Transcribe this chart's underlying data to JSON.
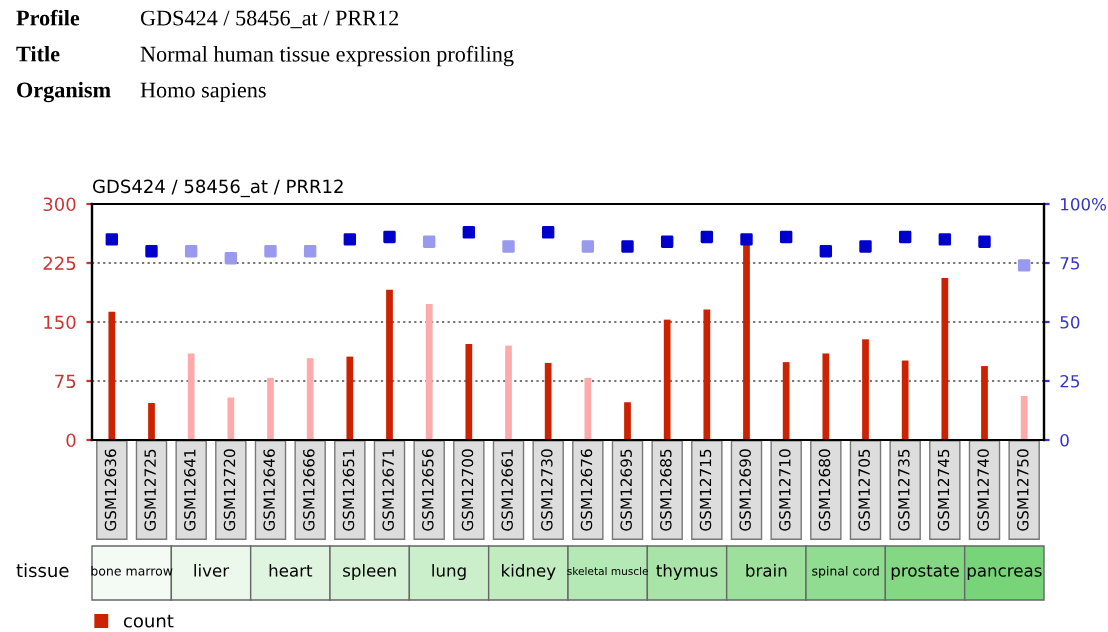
{
  "chart_data": {
    "type": "bar",
    "title": "GDS424 / 58456_at / PRR12",
    "categories": [
      "GSM12636",
      "GSM12725",
      "GSM12641",
      "GSM12720",
      "GSM12646",
      "GSM12666",
      "GSM12651",
      "GSM12671",
      "GSM12656",
      "GSM12700",
      "GSM12661",
      "GSM12730",
      "GSM12676",
      "GSM12695",
      "GSM12685",
      "GSM12715",
      "GSM12690",
      "GSM12710",
      "GSM12680",
      "GSM12705",
      "GSM12735",
      "GSM12745",
      "GSM12740",
      "GSM12750"
    ],
    "series": [
      {
        "name": "count",
        "color": "#cc2200",
        "colors": [
          "#cc2200",
          "#cc2200",
          "#ffaaaa",
          "#ffaaaa",
          "#ffaaaa",
          "#ffaaaa",
          "#cc2200",
          "#cc2200",
          "#ffaaaa",
          "#cc2200",
          "#ffaaaa",
          "#cc2200",
          "#ffaaaa",
          "#cc2200",
          "#cc2200",
          "#cc2200",
          "#cc2200",
          "#cc2200",
          "#cc2200",
          "#cc2200",
          "#cc2200",
          "#cc2200",
          "#cc2200",
          "#ffaaaa"
        ],
        "values": [
          163,
          47,
          110,
          54,
          79,
          104,
          106,
          191,
          173,
          122,
          120,
          98,
          79,
          48,
          153,
          166,
          255,
          99,
          110,
          128,
          101,
          206,
          94,
          56
        ]
      },
      {
        "type": "scatter",
        "axis": "y2",
        "color": "#0000cc",
        "colors": [
          "#0000cc",
          "#0000cc",
          "#9999ee",
          "#9999ee",
          "#9999ee",
          "#9999ee",
          "#0000cc",
          "#0000cc",
          "#9999ee",
          "#0000cc",
          "#9999ee",
          "#0000cc",
          "#9999ee",
          "#0000cc",
          "#0000cc",
          "#0000cc",
          "#0000cc",
          "#0000cc",
          "#0000cc",
          "#0000cc",
          "#0000cc",
          "#0000cc",
          "#0000cc",
          "#9999ee"
        ],
        "values": [
          85,
          80,
          80,
          77,
          80,
          80,
          85,
          86,
          84,
          88,
          82,
          88,
          82,
          82,
          84,
          86,
          85,
          86,
          80,
          82,
          86,
          85,
          84,
          74
        ]
      }
    ],
    "ylim": [
      0,
      300
    ],
    "yticks": [
      0,
      75,
      150,
      225,
      300
    ],
    "y2lim": [
      0,
      100
    ],
    "y2ticks": [
      0,
      25,
      50,
      75,
      {
        "value": 100,
        "label": "100%"
      }
    ],
    "grid": "y",
    "marker": "square",
    "legend": "bottom left",
    "annotations": [
      "Profile",
      "GDS424 / 58456_at / PRR12",
      "Title",
      "Normal human tissue expression profiling",
      "Organism",
      "Homo sapiens",
      "tissue",
      "bone marrow",
      "liver",
      "heart",
      "spleen",
      "lung",
      "kidney",
      "skeletal muscle",
      "thymus",
      "brain",
      "spinal cord",
      "prostate",
      "pancreas"
    ]
  }
}
